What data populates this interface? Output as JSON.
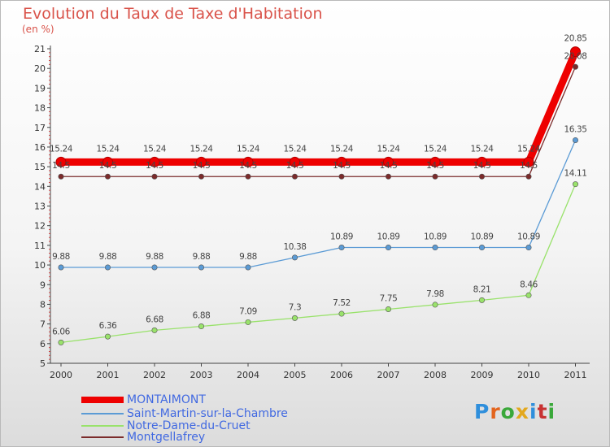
{
  "title": "Evolution du Taux de Taxe d'Habitation",
  "subtitle": "(en %)",
  "chart_data": {
    "type": "line",
    "x": [
      "2000",
      "2001",
      "2002",
      "2003",
      "2004",
      "2005",
      "2006",
      "2007",
      "2008",
      "2009",
      "2010",
      "2011"
    ],
    "ylim": [
      5,
      21
    ],
    "yticks": [
      "5",
      "6",
      "7",
      "8",
      "9",
      "10",
      "11",
      "12",
      "13",
      "14",
      "15",
      "16",
      "17",
      "18",
      "19",
      "20",
      "21"
    ],
    "grid": false,
    "legend_position": "bottom-left",
    "series": [
      {
        "name": "MONTAIMONT",
        "color": "#ee0000",
        "values": [
          15.24,
          15.24,
          15.24,
          15.24,
          15.24,
          15.24,
          15.24,
          15.24,
          15.24,
          15.24,
          15.24,
          20.85
        ],
        "labels": [
          "15.24",
          "15.24",
          "15.24",
          "15.24",
          "15.24",
          "15.24",
          "15.24",
          "15.24",
          "15.24",
          "15.24",
          "15.24",
          "20.85"
        ]
      },
      {
        "name": "Saint-Martin-sur-la-Chambre",
        "color": "#5b9bd5",
        "values": [
          9.88,
          9.88,
          9.88,
          9.88,
          9.88,
          10.38,
          10.89,
          10.89,
          10.89,
          10.89,
          10.89,
          16.35
        ],
        "labels": [
          "9.88",
          "9.88",
          "9.88",
          "9.88",
          "9.88",
          "10.38",
          "10.89",
          "10.89",
          "10.89",
          "10.89",
          "10.89",
          "16.35"
        ]
      },
      {
        "name": "Notre-Dame-du-Cruet",
        "color": "#99e26b",
        "values": [
          6.06,
          6.36,
          6.68,
          6.88,
          7.09,
          7.3,
          7.52,
          7.75,
          7.98,
          8.21,
          8.46,
          14.11
        ],
        "labels": [
          "6.06",
          "6.36",
          "6.68",
          "6.88",
          "7.09",
          "7.3",
          "7.52",
          "7.75",
          "7.98",
          "8.21",
          "8.46",
          "14.11"
        ]
      },
      {
        "name": "Montgellafrey",
        "color": "#7b2b2b",
        "values": [
          14.5,
          14.5,
          14.5,
          14.5,
          14.5,
          14.5,
          14.5,
          14.5,
          14.5,
          14.5,
          14.5,
          20.08
        ],
        "labels": [
          "14.5",
          "14.5",
          "14.5",
          "14.5",
          "14.5",
          "14.5",
          "14.5",
          "14.5",
          "14.5",
          "14.5",
          "14.5",
          "20.08"
        ]
      }
    ]
  },
  "logo": {
    "letters": [
      "P",
      "r",
      "o",
      "x",
      "i",
      "t",
      "i"
    ],
    "colors": [
      "#2f8fdc",
      "#e3641d",
      "#3aa83a",
      "#e3a81d",
      "#2f8fdc",
      "#c83232",
      "#3aa83a"
    ]
  }
}
